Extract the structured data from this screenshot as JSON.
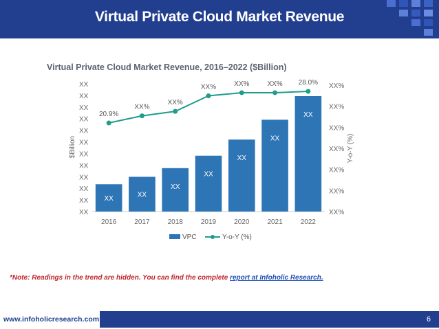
{
  "header": {
    "title": "Virtual Private Cloud Market Revenue"
  },
  "note": {
    "text": "*Note: Readings in the trend are hidden. You can find the complete ",
    "link": "report at Infoholic Research."
  },
  "footer": {
    "url": "www.infoholicresearch.com",
    "page": "6"
  },
  "colors": {
    "brand": "#223f8f",
    "bar": "#2e75b6",
    "line": "#1e9c8c",
    "note": "#c0262d"
  },
  "chart_data": {
    "type": "bar",
    "title": "Virtual Private Cloud Market Revenue, 2016–2022 ($Billion)",
    "categories": [
      "2016",
      "2017",
      "2018",
      "2019",
      "2020",
      "2021",
      "2022"
    ],
    "ylabel": "$Billion",
    "y2label": "Y-o-Y (%)",
    "left_ticks": [
      "XX",
      "XX",
      "XX",
      "XX",
      "XX",
      "XX",
      "XX",
      "XX",
      "XX",
      "XX",
      "XX",
      "XX"
    ],
    "right_ticks": [
      "XX%",
      "XX%",
      "XX%",
      "XX%",
      "XX%",
      "XX%",
      "XX%"
    ],
    "ylim": [
      0,
      11
    ],
    "y2lim": [
      0,
      30
    ],
    "series": [
      {
        "name": "VPC",
        "kind": "bar",
        "values": [
          2.2,
          2.8,
          3.5,
          4.5,
          5.8,
          7.4,
          9.3
        ],
        "labels": [
          "XX",
          "XX",
          "XX",
          "XX",
          "XX",
          "XX",
          "XX"
        ]
      },
      {
        "name": "Y-o-Y (%)",
        "kind": "line",
        "values": [
          20.9,
          22.5,
          23.5,
          27.0,
          27.7,
          27.7,
          28.0
        ],
        "labels": [
          "20.9%",
          "XX%",
          "XX%",
          "XX%",
          "XX%",
          "XX%",
          "28.0%"
        ]
      }
    ],
    "legend": [
      "VPC",
      "Y-o-Y (%)"
    ]
  }
}
